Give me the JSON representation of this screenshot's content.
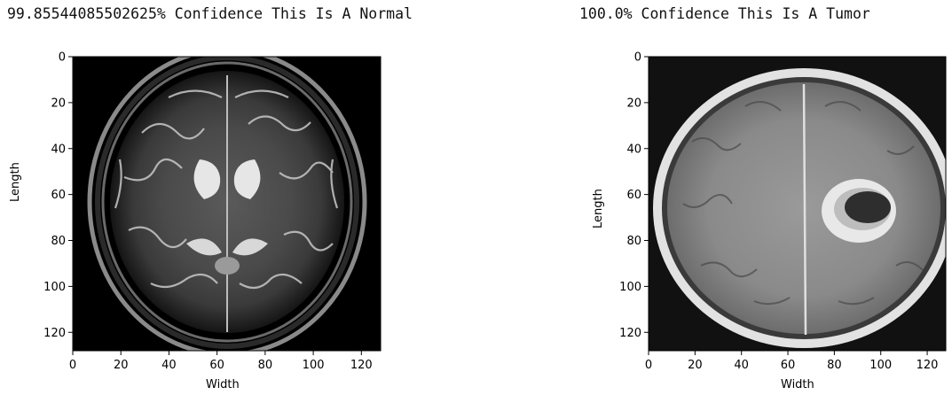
{
  "left_panel": {
    "caption": "99.85544085502625% Confidence This Is A Normal",
    "xlabel": "Width",
    "ylabel": "Length",
    "xticks": [
      "0",
      "20",
      "40",
      "60",
      "80",
      "100",
      "120"
    ],
    "yticks": [
      "0",
      "20",
      "40",
      "60",
      "80",
      "100",
      "120"
    ],
    "image_name": "brain-mri-normal-axial-scan"
  },
  "right_panel": {
    "caption": "100.0% Confidence This Is A Tumor",
    "xlabel": "Width",
    "ylabel": "Length",
    "xticks": [
      "0",
      "20",
      "40",
      "60",
      "80",
      "100",
      "120"
    ],
    "yticks": [
      "0",
      "20",
      "40",
      "60",
      "80",
      "100",
      "120"
    ],
    "image_name": "brain-mri-tumor-axial-scan"
  },
  "axis_range": {
    "min": 0,
    "max": 128
  },
  "colors": {
    "background": "#ffffff",
    "scan_background": "#000000",
    "text": "#000000"
  }
}
